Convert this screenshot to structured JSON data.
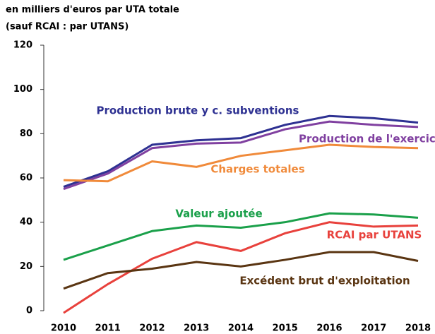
{
  "chart_data": {
    "type": "line",
    "subtitle": [
      "en milliers d'euros par UTA totale",
      "(sauf RCAI : par UTANS)"
    ],
    "categories": [
      "2010",
      "2011",
      "2012",
      "2013",
      "2014",
      "2015",
      "2016",
      "2017",
      "2018"
    ],
    "series": [
      {
        "name": "Production brute y c. subventions",
        "color": "#2e3192",
        "values": [
          56,
          63,
          75,
          77,
          78,
          84,
          88,
          87,
          85
        ]
      },
      {
        "name": "Production de l'exercice",
        "color": "#8040a0",
        "values": [
          55,
          62,
          73.5,
          75.5,
          76,
          82,
          85.5,
          84,
          83
        ]
      },
      {
        "name": "Charges totales",
        "color": "#f08a3a",
        "values": [
          59,
          58.5,
          67.5,
          65,
          70,
          72.5,
          75,
          74,
          73.5
        ]
      },
      {
        "name": "Valeur ajoutée",
        "color": "#1aa04a",
        "values": [
          23,
          29.5,
          36,
          38.5,
          37.5,
          40,
          44,
          43.5,
          42
        ]
      },
      {
        "name": "RCAI par UTANS",
        "color": "#e8413c",
        "values": [
          -1,
          12,
          23.5,
          31,
          27,
          35,
          40,
          38,
          38.5
        ]
      },
      {
        "name": "Excédent brut d'exploitation",
        "color": "#5a3512",
        "values": [
          10,
          17,
          19,
          22,
          20,
          23,
          26.5,
          26.5,
          22.5
        ]
      }
    ],
    "ylim": [
      0,
      120
    ],
    "yticks": [
      0,
      20,
      40,
      60,
      80,
      100,
      120
    ],
    "grid": false
  }
}
